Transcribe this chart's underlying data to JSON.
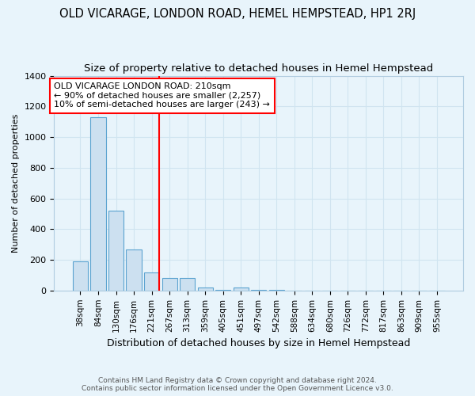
{
  "title": "OLD VICARAGE, LONDON ROAD, HEMEL HEMPSTEAD, HP1 2RJ",
  "subtitle": "Size of property relative to detached houses in Hemel Hempstead",
  "xlabel": "Distribution of detached houses by size in Hemel Hempstead",
  "ylabel": "Number of detached properties",
  "footer_line1": "Contains HM Land Registry data © Crown copyright and database right 2024.",
  "footer_line2": "Contains public sector information licensed under the Open Government Licence v3.0.",
  "categories": [
    "38sqm",
    "84sqm",
    "130sqm",
    "176sqm",
    "221sqm",
    "267sqm",
    "313sqm",
    "359sqm",
    "405sqm",
    "451sqm",
    "497sqm",
    "542sqm",
    "588sqm",
    "634sqm",
    "680sqm",
    "726sqm",
    "772sqm",
    "817sqm",
    "863sqm",
    "909sqm",
    "955sqm"
  ],
  "values": [
    190,
    1130,
    520,
    270,
    120,
    80,
    80,
    20,
    5,
    20,
    5,
    5,
    0,
    0,
    0,
    0,
    0,
    0,
    0,
    0,
    0
  ],
  "bar_color": "#cce0f0",
  "bar_edge_color": "#5ba3d0",
  "vline_color": "red",
  "vline_index": 4,
  "ylim": [
    0,
    1400
  ],
  "yticks": [
    0,
    200,
    400,
    600,
    800,
    1000,
    1200,
    1400
  ],
  "annotation_title": "OLD VICARAGE LONDON ROAD: 210sqm",
  "annotation_line1": "← 90% of detached houses are smaller (2,257)",
  "annotation_line2": "10% of semi-detached houses are larger (243) →",
  "background_color": "#e8f4fb",
  "grid_color": "#d0e4f0",
  "title_fontsize": 10.5,
  "subtitle_fontsize": 9.5,
  "ann_fontsize": 8.0,
  "ylabel_fontsize": 8,
  "xlabel_fontsize": 9
}
